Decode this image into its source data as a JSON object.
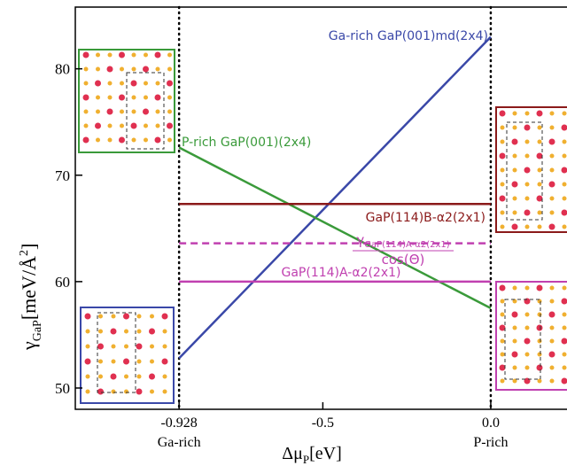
{
  "chart_data": {
    "type": "line",
    "xlabel": {
      "symbol": "Δμ",
      "subscript": "P",
      "rest": "[eV]"
    },
    "ylabel": {
      "symbol": "γ",
      "subscript": "GaP",
      "rest": "[meV/Å",
      "superscript": "2",
      "close": "]"
    },
    "xlim": [
      -1.237,
      0.227
    ],
    "ylim": [
      48,
      85.8
    ],
    "xticks": [
      -0.928,
      -0.5,
      {
        "value": 0,
        "label": "0.0"
      }
    ],
    "yticks": [
      50,
      60,
      70,
      80
    ],
    "limit_labels": [
      "Ga-rich",
      "P-rich"
    ],
    "limit_lines": [
      -0.928,
      0
    ],
    "series": [
      {
        "name": "Ga-rich GaP(001)md(2x4)",
        "color": "#3a48a8",
        "x": [
          -0.928,
          0
        ],
        "values": [
          52.8,
          83.0
        ]
      },
      {
        "name": "P-rich GaP(001)(2x4)",
        "color": "#3a9a3a",
        "x": [
          -0.928,
          0
        ],
        "values": [
          72.6,
          57.5
        ]
      },
      {
        "name": "GaP(114)B-α2(2x1)",
        "color": "#8b1a1a",
        "x": [
          -0.928,
          0
        ],
        "values": [
          67.3,
          67.3
        ]
      },
      {
        "color": "#c040b0",
        "dashed": true,
        "x": [
          -0.928,
          0
        ],
        "values": [
          63.6,
          63.6
        ]
      },
      {
        "name": "GaP(114)A-α2(2x1)",
        "color": "#c040b0",
        "x": [
          -0.928,
          0
        ],
        "values": [
          60.0,
          60.0
        ]
      }
    ],
    "annotation": {
      "symbol": "γ",
      "subscript": "GaP(114)A-α2(2x1)",
      "denominator": "cos(Θ)"
    }
  }
}
